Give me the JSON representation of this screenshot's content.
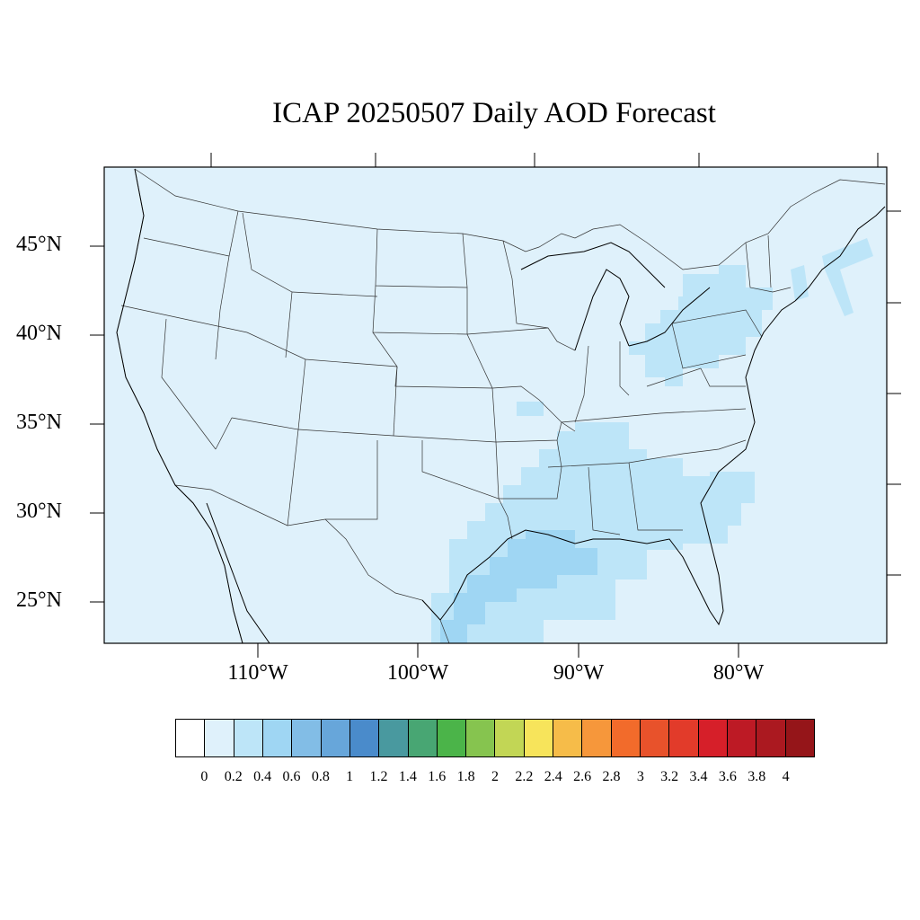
{
  "title": "ICAP 20250507 Daily AOD Forecast",
  "map": {
    "projection": "conic",
    "ocean_color": "#dff1fb",
    "land_fill_color": "#dff1fb",
    "border_color": "#000000"
  },
  "lat_labels": [
    "45°N",
    "40°N",
    "35°N",
    "30°N",
    "25°N"
  ],
  "lon_labels": [
    "110°W",
    "100°W",
    "90°W",
    "80°W"
  ],
  "colorbar": {
    "colors": [
      "#ffffff",
      "#dff1fb",
      "#bde5f8",
      "#9fd6f3",
      "#82bde6",
      "#67a6da",
      "#4a8bcb",
      "#49999f",
      "#48a673",
      "#4bb449",
      "#86c44f",
      "#c2d655",
      "#f7e45b",
      "#f6bc49",
      "#f6973b",
      "#f26b2b",
      "#e8522b",
      "#e23b2a",
      "#d61f29",
      "#bd1a25",
      "#ab1920",
      "#951519"
    ],
    "labels": [
      "0",
      "0.2",
      "0.4",
      "0.6",
      "0.8",
      "1",
      "1.2",
      "1.4",
      "1.6",
      "1.8",
      "2",
      "2.2",
      "2.4",
      "2.6",
      "2.8",
      "3",
      "3.2",
      "3.4",
      "3.6",
      "3.8",
      "4"
    ]
  },
  "aod_field": {
    "background_level": "0.1-0.2",
    "elevated_level_0_2_0_4_color": "#bde5f8",
    "elevated_level_0_4_0_6_color": "#9fd6f3"
  }
}
